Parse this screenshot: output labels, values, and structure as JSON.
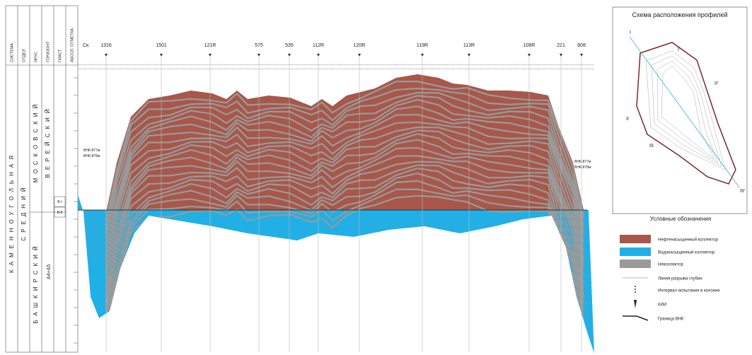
{
  "section": {
    "header_columns": [
      "СИСТЕМА",
      "ОТДЕЛ",
      "ЯРУС",
      "ГОРИЗОНТ",
      "ПЛАСТ",
      "АБСОЛ. ОТМЕТКА"
    ],
    "system": "КАМЕННОУГОЛЬНАЯ",
    "division": "СРЕДНИЙ",
    "stages": [
      "МОСКОВСКИЙ",
      "БАШКИРСКИЙ"
    ],
    "horizons": [
      "ВЕРЕЙСКИЙ",
      "А4+А5"
    ],
    "beds": [
      "В-I",
      "В-II"
    ],
    "wells": [
      "Ск.",
      "1316",
      "1501",
      "121R",
      "575",
      "535",
      "112R",
      "120R",
      "119R",
      "113R",
      "108R",
      "221",
      "808"
    ],
    "contact_labels": [
      "ВНК-877м",
      "ВНК-878м",
      "ВНК-877м",
      "ВНК-878м"
    ]
  },
  "inset": {
    "title": "Схема расположения профилей",
    "profile_labels": [
      "I",
      "II",
      "III",
      "I'",
      "II'",
      "III'"
    ]
  },
  "legend": {
    "title": "Условные обозначения",
    "items": [
      "Нефтенасыщенный коллектор",
      "Водонасыщенный коллектор",
      "Неколлектор",
      "Линия разрыва глубин",
      "Интервал испытания в колонне",
      "КИИ",
      "Граница ВНК"
    ]
  }
}
